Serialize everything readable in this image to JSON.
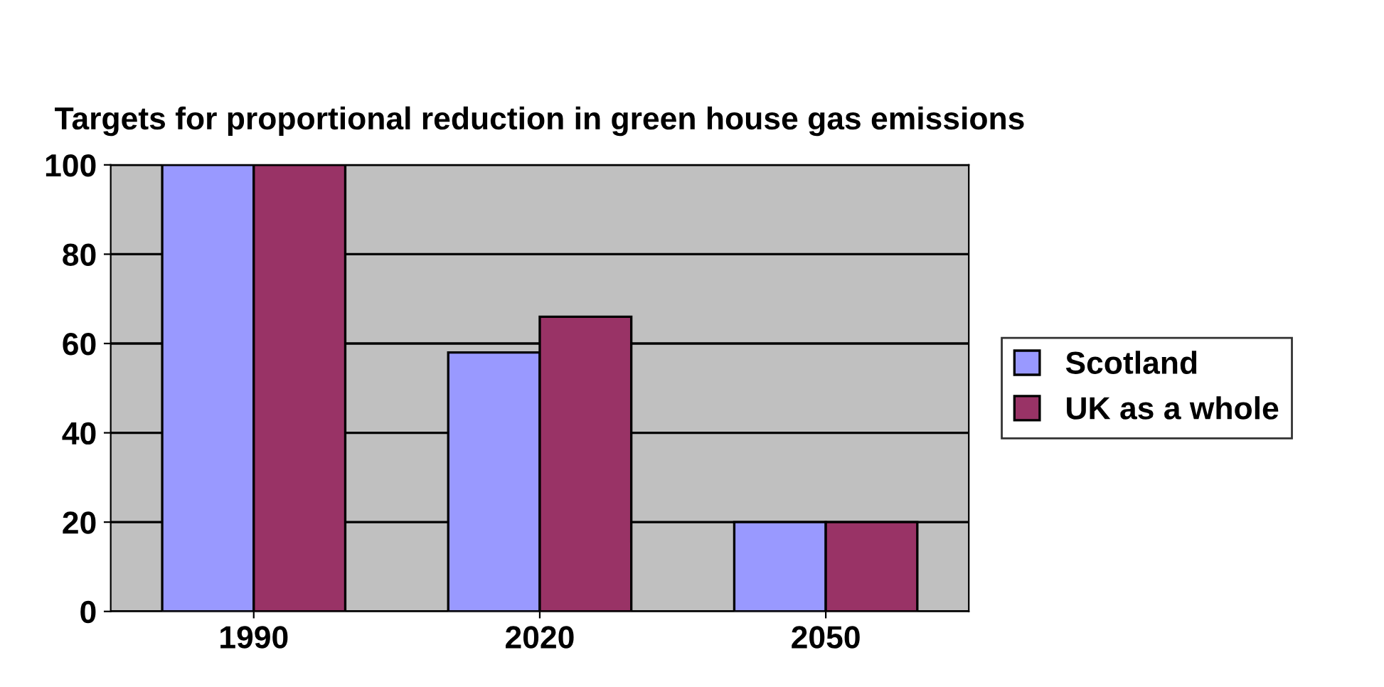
{
  "chart_data": {
    "type": "bar",
    "title": "Targets for proportional reduction in green house gas emissions",
    "categories": [
      "1990",
      "2020",
      "2050"
    ],
    "series": [
      {
        "name": "Scotland",
        "color": "#9999ff",
        "values": [
          100,
          58,
          20
        ]
      },
      {
        "name": "UK as a whole",
        "color": "#993366",
        "values": [
          100,
          66,
          20
        ]
      }
    ],
    "ylim": [
      0,
      100
    ],
    "yticks": [
      0,
      20,
      40,
      60,
      80,
      100
    ],
    "grid": "y",
    "legend": "right"
  }
}
